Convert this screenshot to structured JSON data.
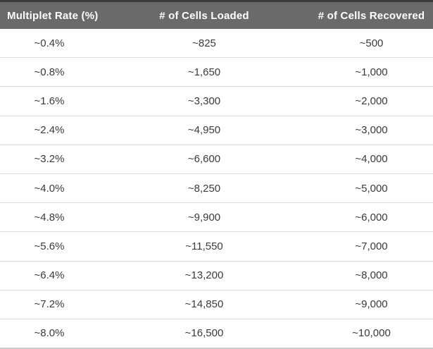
{
  "table": {
    "columns": [
      {
        "label": "Multiplet Rate (%)"
      },
      {
        "label": "# of Cells Loaded"
      },
      {
        "label": "# of Cells Recovered"
      }
    ],
    "rows": [
      [
        "~0.4%",
        "~825",
        "~500"
      ],
      [
        "~0.8%",
        "~1,650",
        "~1,000"
      ],
      [
        "~1.6%",
        "~3,300",
        "~2,000"
      ],
      [
        "~2.4%",
        "~4,950",
        "~3,000"
      ],
      [
        "~3.2%",
        "~6,600",
        "~4,000"
      ],
      [
        "~4.0%",
        "~8,250",
        "~5,000"
      ],
      [
        "~4.8%",
        "~9,900",
        "~6,000"
      ],
      [
        "~5.6%",
        "~11,550",
        "~7,000"
      ],
      [
        "~6.4%",
        "~13,200",
        "~8,000"
      ],
      [
        "~7.2%",
        "~14,850",
        "~9,000"
      ],
      [
        "~8.0%",
        "~16,500",
        "~10,000"
      ]
    ]
  },
  "colors": {
    "header_bg": "#6a6a6a",
    "header_top_line": "#3d3d3d",
    "header_text": "#ffffff",
    "row_divider": "#dcdcdc",
    "cell_text": "#3a3a3a",
    "bottom_border": "#cccccc"
  },
  "chart_data": {
    "type": "table",
    "title": "",
    "columns": [
      "Multiplet Rate (%)",
      "# of Cells Loaded",
      "# of Cells Recovered"
    ],
    "multiplet_rate_pct": [
      0.4,
      0.8,
      1.6,
      2.4,
      3.2,
      4.0,
      4.8,
      5.6,
      6.4,
      7.2,
      8.0
    ],
    "cells_loaded": [
      825,
      1650,
      3300,
      4950,
      6600,
      8250,
      9900,
      11550,
      13200,
      14850,
      16500
    ],
    "cells_recovered": [
      500,
      1000,
      2000,
      3000,
      4000,
      5000,
      6000,
      7000,
      8000,
      9000,
      10000
    ]
  }
}
